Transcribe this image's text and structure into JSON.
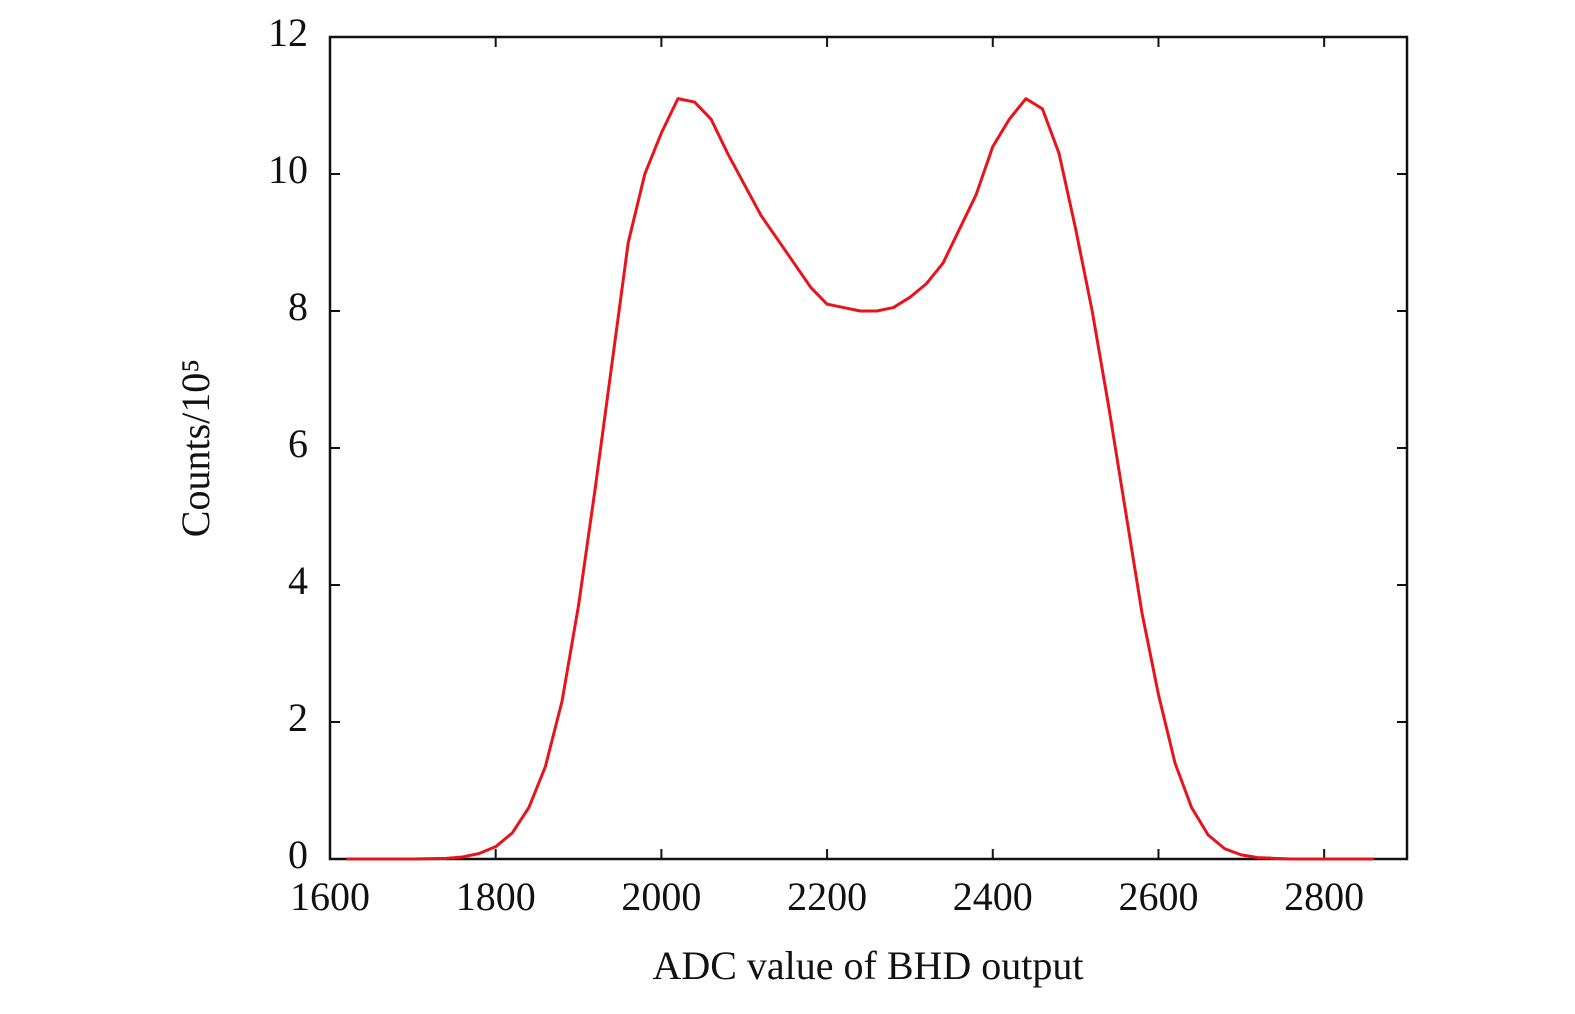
{
  "chart_data": {
    "type": "line",
    "x_label": "ADC value of BHD output",
    "y_label": "Counts/10⁵",
    "x": [
      1620,
      1700,
      1740,
      1760,
      1780,
      1800,
      1820,
      1840,
      1860,
      1880,
      1900,
      1920,
      1940,
      1960,
      1980,
      2000,
      2020,
      2040,
      2060,
      2080,
      2100,
      2120,
      2140,
      2160,
      2180,
      2200,
      2220,
      2240,
      2260,
      2280,
      2300,
      2320,
      2340,
      2360,
      2380,
      2400,
      2420,
      2440,
      2460,
      2480,
      2500,
      2520,
      2540,
      2560,
      2580,
      2600,
      2620,
      2640,
      2660,
      2680,
      2700,
      2720,
      2740,
      2760,
      2860
    ],
    "series": [
      {
        "color": "#e8141c",
        "values": [
          0,
          0,
          0.01,
          0.03,
          0.08,
          0.18,
          0.38,
          0.75,
          1.35,
          2.3,
          3.7,
          5.4,
          7.2,
          9.0,
          10.0,
          10.6,
          11.1,
          11.05,
          10.8,
          10.3,
          9.85,
          9.4,
          9.05,
          8.7,
          8.35,
          8.1,
          8.05,
          8.0,
          8.0,
          8.05,
          8.2,
          8.4,
          8.7,
          9.2,
          9.7,
          10.4,
          10.8,
          11.1,
          10.95,
          10.3,
          9.2,
          8.0,
          6.6,
          5.1,
          3.6,
          2.4,
          1.4,
          0.75,
          0.35,
          0.15,
          0.06,
          0.02,
          0.01,
          0,
          0
        ]
      }
    ],
    "xlim": [
      1600,
      2900
    ],
    "xticks": [
      1600,
      1800,
      2000,
      2200,
      2400,
      2600,
      2800
    ],
    "ylim": [
      0,
      12
    ],
    "yticks": [
      0,
      2,
      4,
      6,
      8,
      10,
      12
    ]
  }
}
